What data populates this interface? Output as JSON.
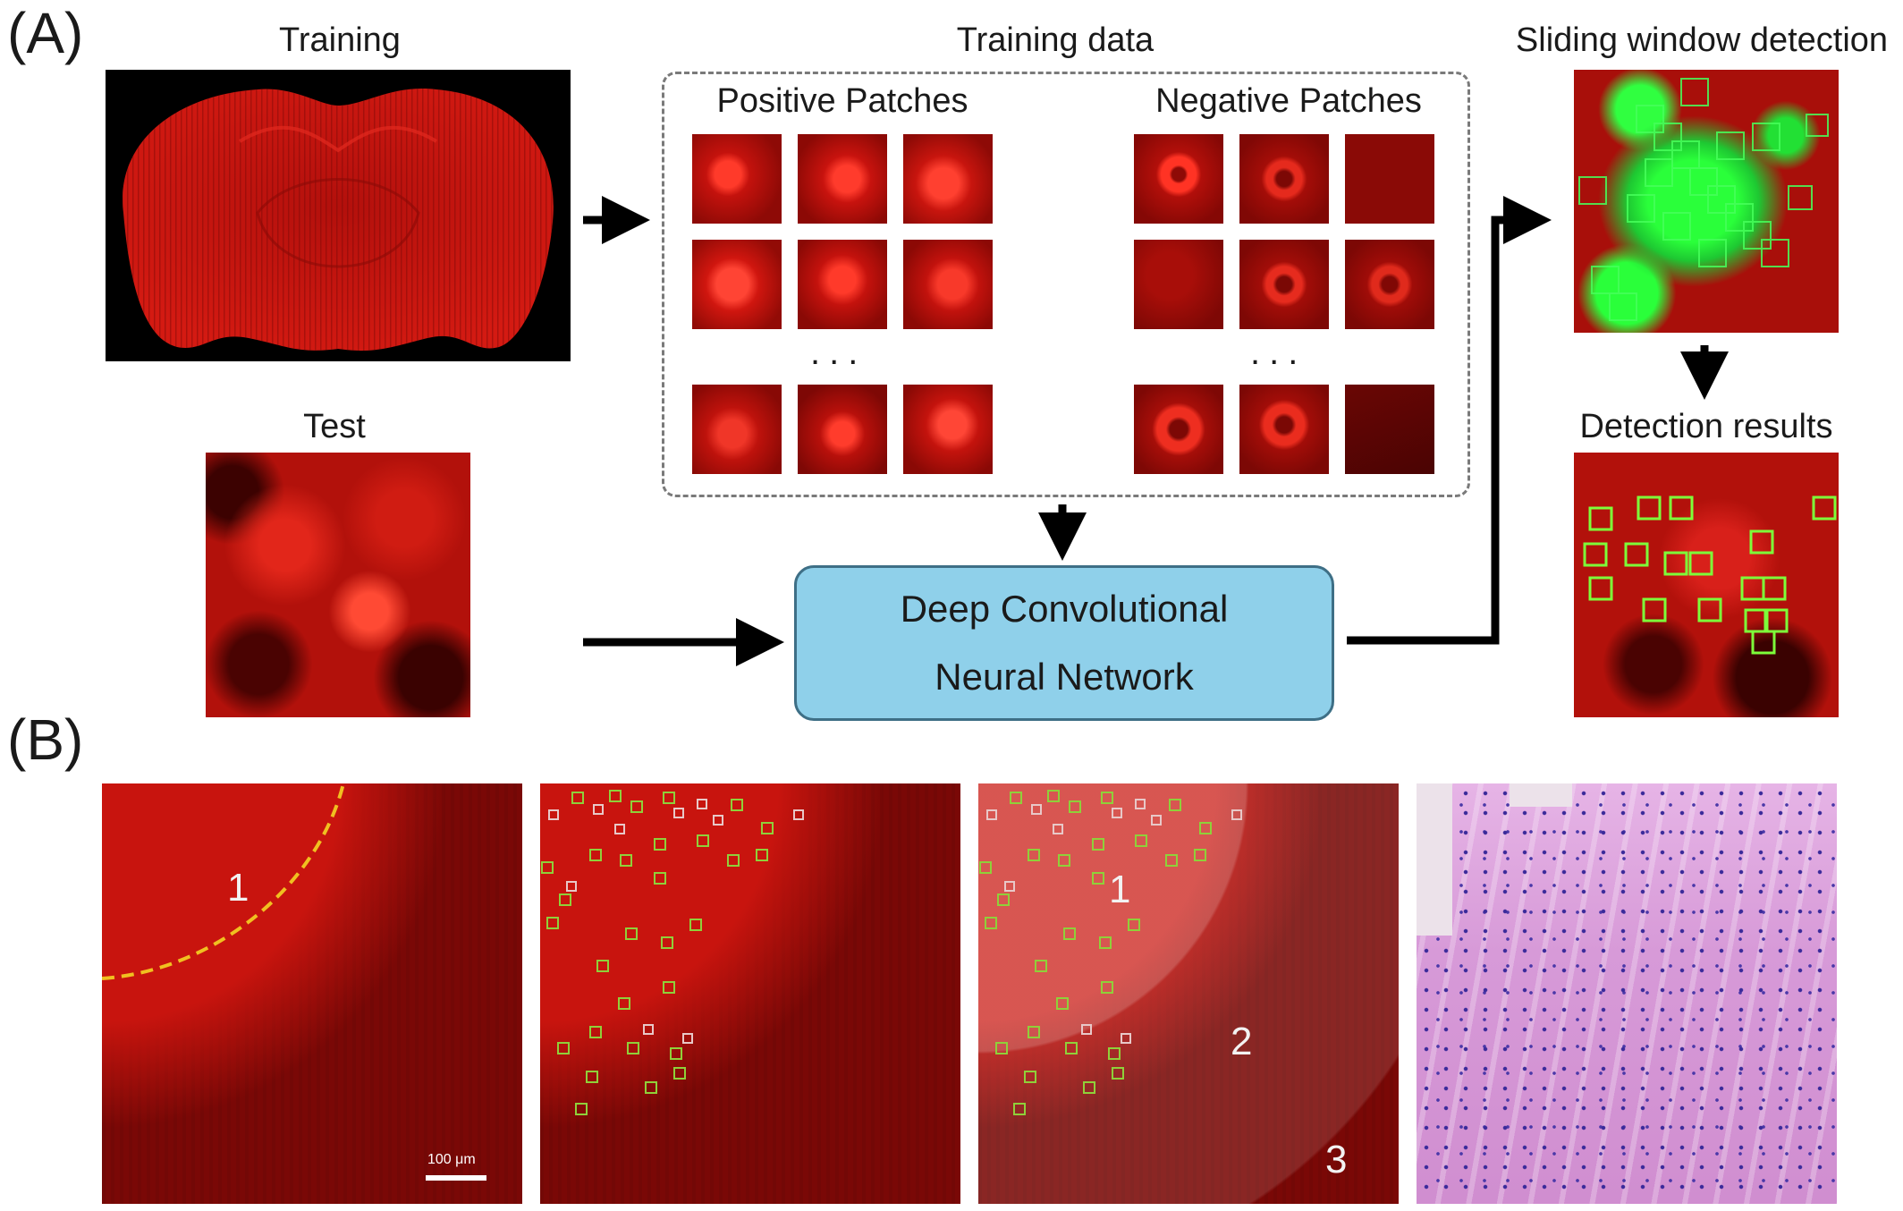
{
  "panel_a": {
    "letter": "(A)",
    "training_label": "Training",
    "test_label": "Test",
    "training_data_label": "Training data",
    "positive_label": "Positive Patches",
    "negative_label": "Negative Patches",
    "ellipsis": "...",
    "dcnn_line1": "Deep Convolutional",
    "dcnn_line2": "Neural Network",
    "sliding_label": "Sliding window detection",
    "results_label": "Detection results"
  },
  "panel_b": {
    "letter": "(B)",
    "scale_bar_text": "100 μm",
    "region_1": "1",
    "region_2": "2",
    "region_3": "3"
  },
  "colors": {
    "tissue_red": "#c0100c",
    "detection_green": "#3cff4a",
    "dcnn_fill": "#8fd0ea",
    "boundary_yellow": "#f0c020",
    "he_stain": "#d79ad8"
  }
}
